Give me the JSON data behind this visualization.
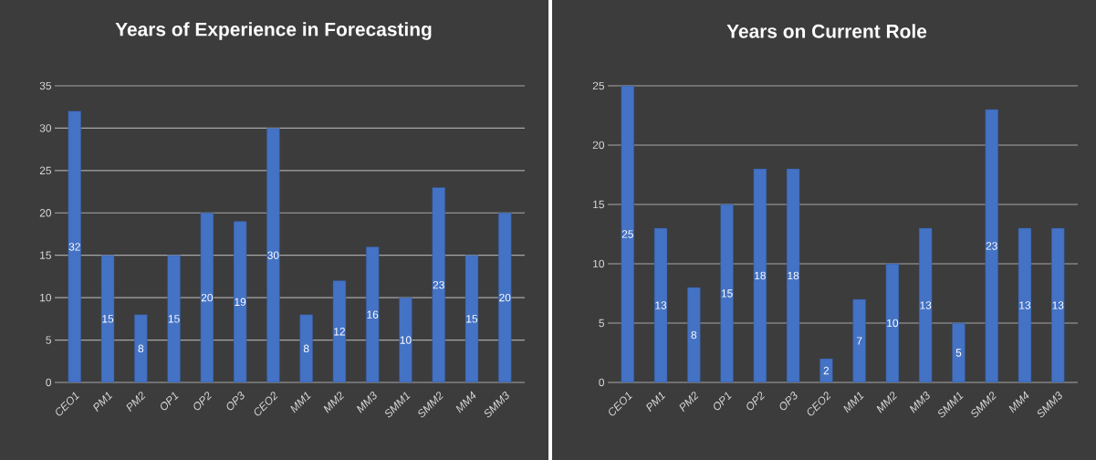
{
  "chart_data": [
    {
      "type": "bar",
      "title": "Years of Experience  in Forecasting",
      "categories": [
        "CEO1",
        "PM1",
        "PM2",
        "OP1",
        "OP2",
        "OP3",
        "CEO2",
        "MM1",
        "MM2",
        "MM3",
        "SMM1",
        "SMM2",
        "MM4",
        "SMM3"
      ],
      "values": [
        32,
        15,
        8,
        15,
        20,
        19,
        30,
        8,
        12,
        16,
        10,
        23,
        15,
        20
      ],
      "color": "#4472c4",
      "ylim": [
        0,
        35
      ],
      "yticks": [
        0,
        5,
        10,
        15,
        20,
        25,
        30,
        35
      ],
      "grid": "y",
      "data_labels": true
    },
    {
      "type": "bar",
      "title": "Years on Current Role",
      "categories": [
        "CEO1",
        "PM1",
        "PM2",
        "OP1",
        "OP2",
        "OP3",
        "CEO2",
        "MM1",
        "MM2",
        "MM3",
        "SMM1",
        "SMM2",
        "MM4",
        "SMM3"
      ],
      "values": [
        25,
        13,
        8,
        15,
        18,
        18,
        2,
        7,
        10,
        13,
        5,
        23,
        13,
        13
      ],
      "color": "#4472c4",
      "ylim": [
        0,
        25
      ],
      "yticks": [
        0,
        5,
        10,
        15,
        20,
        25
      ],
      "grid": "y",
      "data_labels": true
    }
  ]
}
